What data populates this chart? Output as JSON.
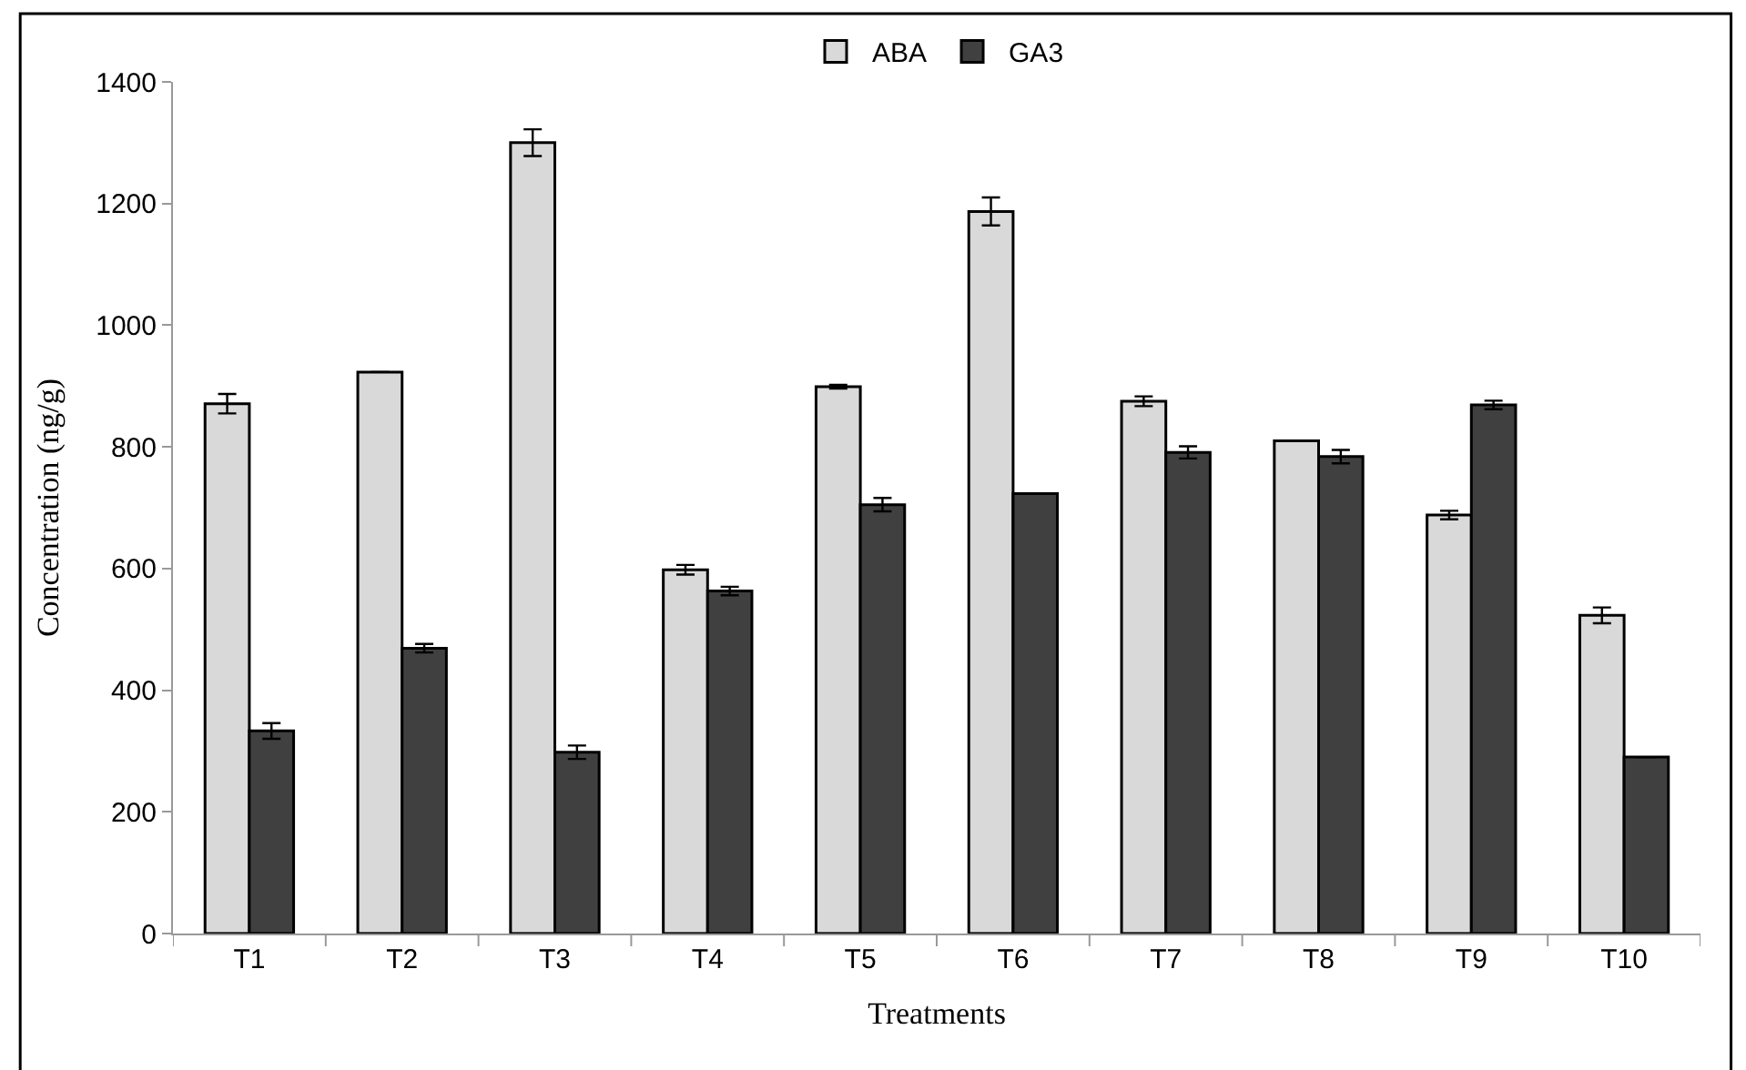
{
  "chart_data": {
    "type": "bar",
    "xlabel": "Treatments",
    "ylabel": "Concentration (ng/g)",
    "categories": [
      "T1",
      "T2",
      "T3",
      "T4",
      "T5",
      "T6",
      "T7",
      "T8",
      "T9",
      "T10"
    ],
    "series": [
      {
        "name": "ABA",
        "color": "#d9d9d9",
        "values": [
          871,
          923,
          1300,
          598,
          899,
          1187,
          875,
          810,
          688,
          523
        ],
        "errors": [
          16,
          null,
          22,
          8,
          3,
          23,
          8,
          null,
          7,
          13
        ]
      },
      {
        "name": "GA3",
        "color": "#404040",
        "values": [
          333,
          469,
          298,
          563,
          705,
          723,
          791,
          784,
          869,
          290
        ],
        "errors": [
          13,
          7,
          11,
          7,
          11,
          null,
          10,
          11,
          7,
          null
        ]
      }
    ],
    "ylim": [
      0,
      1400
    ],
    "yticks": [
      0,
      200,
      400,
      600,
      800,
      1000,
      1200,
      1400
    ],
    "legend": "top"
  }
}
